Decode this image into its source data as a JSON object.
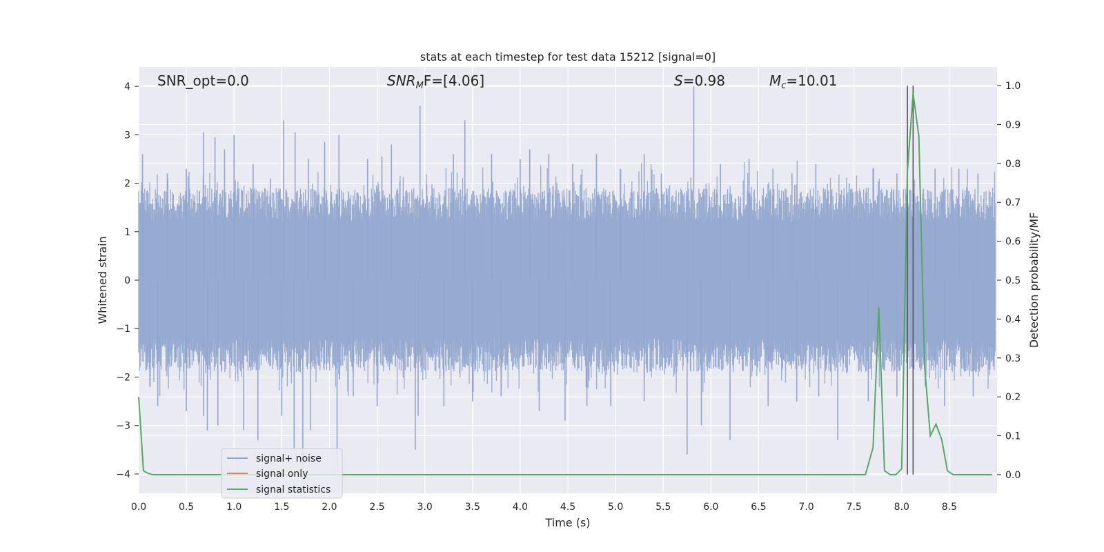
{
  "chart_data": {
    "type": "line",
    "title": "stats at each timestep for test data 15212 [signal=0]",
    "xlabel": "Time (s)",
    "ylabel": "Whitened strain",
    "y2label": "Detection probability/MF",
    "xlim": [
      0.0,
      9.0
    ],
    "ylim": [
      -4.4,
      4.4
    ],
    "y2lim": [
      -0.048,
      1.048
    ],
    "xticks": [
      0.0,
      0.5,
      1.0,
      1.5,
      2.0,
      2.5,
      3.0,
      3.5,
      4.0,
      4.5,
      5.0,
      5.5,
      6.0,
      6.5,
      7.0,
      7.5,
      8.0,
      8.5
    ],
    "xtick_labels": [
      "0.0",
      "0.5",
      "1.0",
      "1.5",
      "2.0",
      "2.5",
      "3.0",
      "3.5",
      "4.0",
      "4.5",
      "5.0",
      "5.5",
      "6.0",
      "6.5",
      "7.0",
      "7.5",
      "8.0",
      "8.5"
    ],
    "yticks": [
      4,
      3,
      2,
      1,
      0,
      -1,
      -2,
      -3,
      -4
    ],
    "ytick_labels": [
      "4",
      "3",
      "2",
      "1",
      "0",
      "−1",
      "−2",
      "−3",
      "−4"
    ],
    "y2ticks": [
      1.0,
      0.9,
      0.8,
      0.7,
      0.6,
      0.5,
      0.4,
      0.3,
      0.2,
      0.1,
      0.0
    ],
    "y2tick_labels": [
      "1.0",
      "0.9",
      "0.8",
      "0.7",
      "0.6",
      "0.5",
      "0.4",
      "0.3",
      "0.2",
      "0.1",
      "0.0"
    ],
    "grid": true,
    "legend": {
      "placement": "lower-left",
      "entries": [
        "signal+ noise",
        "signal only",
        "signal statistics"
      ]
    },
    "annotations": {
      "snr_opt": "SNR_opt=0.0",
      "snr_mf_label": "SNR",
      "snr_mf_sub": "M",
      "snr_mf_rest": "F=[4.06]",
      "s_label": "S",
      "s_value": "=0.98",
      "mc_label": "M",
      "mc_sub": "c",
      "mc_value": "=10.01"
    },
    "series": [
      {
        "name": "signal+ noise",
        "color": "#92a6ce",
        "axis": "left",
        "strain_spikes": [
          [
            0.04,
            2.6
          ],
          [
            0.3,
            2.2
          ],
          [
            0.5,
            2.3
          ],
          [
            0.68,
            3.05
          ],
          [
            0.8,
            2.95
          ],
          [
            0.9,
            2.7
          ],
          [
            1.0,
            3.0
          ],
          [
            1.2,
            2.4
          ],
          [
            1.38,
            2.1
          ],
          [
            1.52,
            3.3
          ],
          [
            1.64,
            3.05
          ],
          [
            1.78,
            2.5
          ],
          [
            1.95,
            2.85
          ],
          [
            2.1,
            3.0
          ],
          [
            2.4,
            2.5
          ],
          [
            2.55,
            2.55
          ],
          [
            2.65,
            2.8
          ],
          [
            2.95,
            3.6
          ],
          [
            3.3,
            2.6
          ],
          [
            3.42,
            3.3
          ],
          [
            3.7,
            2.6
          ],
          [
            4.0,
            2.5
          ],
          [
            4.1,
            2.7
          ],
          [
            4.3,
            2.6
          ],
          [
            4.55,
            2.4
          ],
          [
            4.8,
            2.6
          ],
          [
            5.05,
            2.3
          ],
          [
            5.3,
            2.6
          ],
          [
            5.48,
            2.2
          ],
          [
            5.82,
            4.0
          ],
          [
            6.1,
            2.4
          ],
          [
            6.4,
            2.5
          ],
          [
            6.65,
            2.3
          ],
          [
            6.85,
            2.2
          ],
          [
            7.1,
            2.4
          ],
          [
            7.45,
            2.0
          ],
          [
            7.7,
            2.3
          ],
          [
            7.95,
            2.2
          ],
          [
            8.35,
            2.3
          ],
          [
            8.6,
            2.3
          ],
          [
            8.8,
            2.2
          ],
          [
            0.12,
            -2.2
          ],
          [
            0.2,
            -2.6
          ],
          [
            0.5,
            -2.7
          ],
          [
            0.68,
            -2.8
          ],
          [
            0.72,
            -3.1
          ],
          [
            0.83,
            -3.0
          ],
          [
            1.1,
            -3.1
          ],
          [
            1.25,
            -3.3
          ],
          [
            1.5,
            -2.8
          ],
          [
            1.63,
            -3.5
          ],
          [
            1.72,
            -4.2
          ],
          [
            1.8,
            -3.1
          ],
          [
            2.08,
            -3.8
          ],
          [
            2.25,
            -2.4
          ],
          [
            2.5,
            -2.6
          ],
          [
            2.9,
            -3.5
          ],
          [
            2.93,
            -2.8
          ],
          [
            3.2,
            -2.6
          ],
          [
            3.5,
            -2.5
          ],
          [
            3.8,
            -2.4
          ],
          [
            4.2,
            -2.7
          ],
          [
            4.47,
            -2.9
          ],
          [
            4.7,
            -2.6
          ],
          [
            4.95,
            -2.6
          ],
          [
            5.3,
            -2.5
          ],
          [
            5.75,
            -3.6
          ],
          [
            5.9,
            -3.0
          ],
          [
            6.2,
            -3.3
          ],
          [
            6.6,
            -2.6
          ],
          [
            6.9,
            -2.5
          ],
          [
            7.13,
            -2.4
          ],
          [
            7.33,
            -3.3
          ],
          [
            7.65,
            -2.5
          ],
          [
            7.95,
            -2.4
          ],
          [
            8.45,
            -2.6
          ],
          [
            8.75,
            -2.4
          ]
        ]
      },
      {
        "name": "signal only",
        "color": "#dd8452",
        "axis": "left",
        "strain_spikes": []
      },
      {
        "name": "signal statistics",
        "color": "#55a868",
        "axis": "right",
        "x": [
          0.0,
          0.05,
          0.1,
          0.15,
          0.5,
          1.0,
          2.0,
          3.0,
          4.0,
          5.0,
          6.0,
          7.0,
          7.5,
          7.56,
          7.62,
          7.7,
          7.76,
          7.82,
          7.88,
          7.94,
          8.0,
          8.06,
          8.12,
          8.18,
          8.24,
          8.3,
          8.36,
          8.42,
          8.48,
          8.54,
          8.6,
          8.95
        ],
        "y": [
          0.2,
          0.01,
          0.003,
          0.0,
          0.0,
          0.0,
          0.0,
          0.0,
          0.0,
          0.0,
          0.0,
          0.0,
          0.0,
          0.0,
          0.0,
          0.07,
          0.43,
          0.01,
          0.0,
          0.0,
          0.015,
          0.78,
          0.98,
          0.87,
          0.28,
          0.1,
          0.13,
          0.09,
          0.01,
          0.0,
          0.0,
          0.0
        ]
      }
    ],
    "vlines": [
      8.06,
      8.12
    ]
  }
}
